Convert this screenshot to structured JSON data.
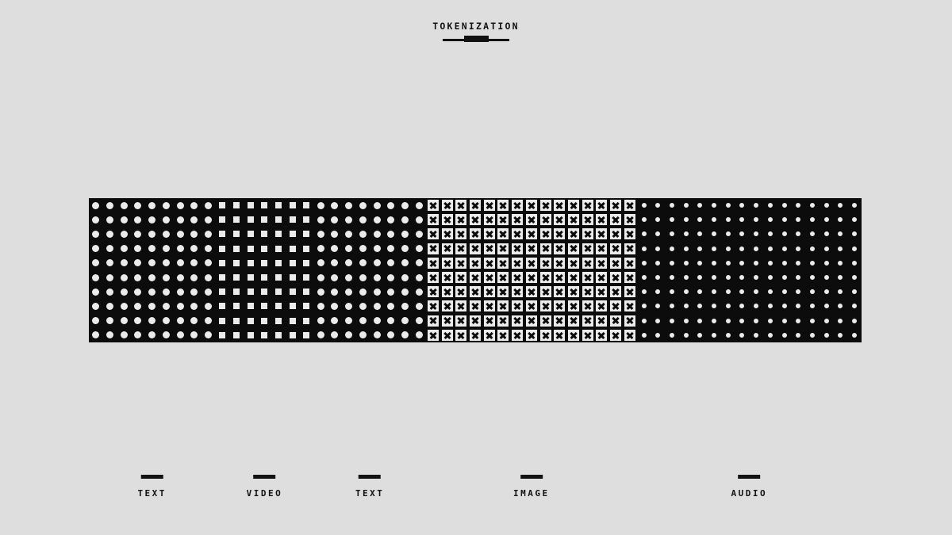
{
  "title": "TOKENIZATION",
  "colors": {
    "background": "#dedede",
    "ink": "#121212",
    "strip_background": "#0c0c0c",
    "glyph": "#ebebeb"
  },
  "strip": {
    "rows": 10,
    "segments": [
      {
        "id": "text-1",
        "modality": "TEXT",
        "pattern": "dot",
        "columns": 9
      },
      {
        "id": "video",
        "modality": "VIDEO",
        "pattern": "square",
        "columns": 7
      },
      {
        "id": "text-2",
        "modality": "TEXT",
        "pattern": "dot",
        "columns": 8
      },
      {
        "id": "image",
        "modality": "IMAGE",
        "pattern": "x",
        "columns": 15
      },
      {
        "id": "audio",
        "modality": "AUDIO",
        "pattern": "ring",
        "columns": 16
      }
    ]
  },
  "legend": {
    "labels": [
      "TEXT",
      "VIDEO",
      "TEXT",
      "IMAGE",
      "AUDIO"
    ]
  }
}
